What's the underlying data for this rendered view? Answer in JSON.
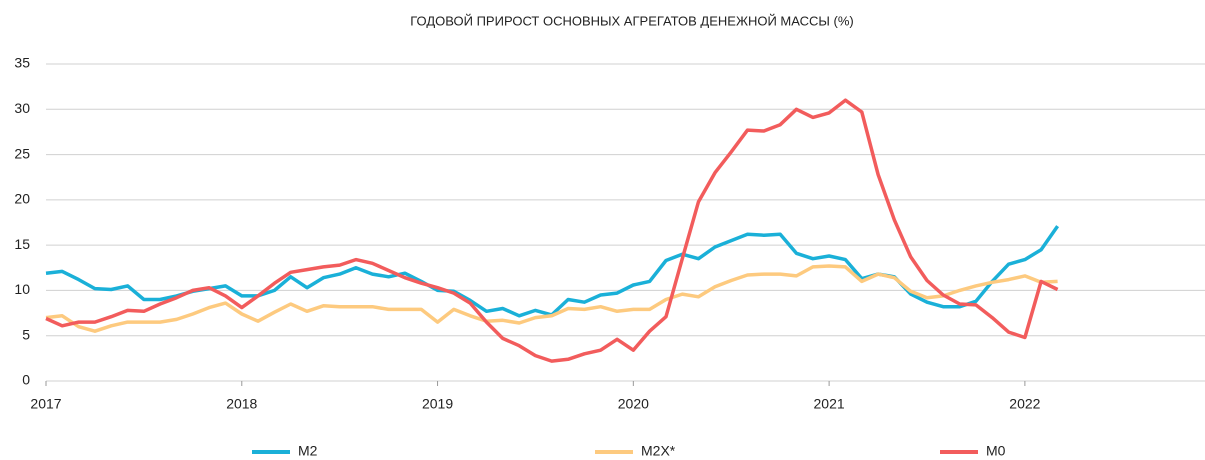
{
  "chart_data": {
    "type": "line",
    "title": "ГОДОВОЙ ПРИРОСТ ОСНОВНЫХ АГРЕГАТОВ ДЕНЕЖНОЙ МАССЫ (%)",
    "x": [
      2017,
      2017.083,
      2017.167,
      2017.25,
      2017.333,
      2017.417,
      2017.5,
      2017.583,
      2017.667,
      2017.75,
      2017.833,
      2017.917,
      2018,
      2018.083,
      2018.167,
      2018.25,
      2018.333,
      2018.417,
      2018.5,
      2018.583,
      2018.667,
      2018.75,
      2018.833,
      2018.917,
      2019,
      2019.083,
      2019.167,
      2019.25,
      2019.333,
      2019.417,
      2019.5,
      2019.583,
      2019.667,
      2019.75,
      2019.833,
      2019.917,
      2020,
      2020.083,
      2020.167,
      2020.25,
      2020.333,
      2020.417,
      2020.5,
      2020.583,
      2020.667,
      2020.75,
      2020.833,
      2020.917,
      2021,
      2021.083,
      2021.167,
      2021.25,
      2021.333,
      2021.417,
      2021.5,
      2021.583,
      2021.667,
      2021.75,
      2021.833,
      2021.917,
      2022,
      2022.083,
      2022.167
    ],
    "series": [
      {
        "name": "M2",
        "color": "#1ab0d8",
        "values": [
          11.9,
          12.1,
          11.2,
          10.2,
          10.1,
          10.5,
          9.0,
          9.0,
          9.4,
          9.9,
          10.2,
          10.5,
          9.4,
          9.4,
          10.0,
          11.5,
          10.3,
          11.4,
          11.8,
          12.5,
          11.8,
          11.5,
          11.9,
          11.0,
          10.0,
          9.9,
          8.9,
          7.7,
          8.0,
          7.2,
          7.8,
          7.3,
          9.0,
          8.7,
          9.5,
          9.7,
          10.6,
          11.0,
          13.3,
          14.0,
          13.5,
          14.8,
          15.5,
          16.2,
          16.1,
          16.2,
          14.1,
          13.5,
          13.8,
          13.4,
          11.3,
          11.8,
          11.5,
          9.6,
          8.7,
          8.2,
          8.2,
          8.8,
          11.0,
          12.9,
          13.4,
          14.5,
          17.1
        ]
      },
      {
        "name": "M2X*",
        "color": "#fdca7f",
        "values": [
          7.0,
          7.2,
          6.0,
          5.5,
          6.1,
          6.5,
          6.5,
          6.5,
          6.8,
          7.4,
          8.1,
          8.6,
          7.4,
          6.6,
          7.6,
          8.5,
          7.7,
          8.3,
          8.2,
          8.2,
          8.2,
          7.9,
          7.9,
          7.9,
          6.5,
          7.9,
          7.2,
          6.6,
          6.7,
          6.4,
          7.0,
          7.2,
          8.0,
          7.9,
          8.2,
          7.7,
          7.9,
          7.9,
          9.0,
          9.6,
          9.3,
          10.4,
          11.1,
          11.7,
          11.8,
          11.8,
          11.6,
          12.6,
          12.7,
          12.6,
          11.0,
          11.8,
          11.4,
          9.9,
          9.2,
          9.4,
          10.0,
          10.5,
          10.9,
          11.2,
          11.6,
          10.9,
          11.0
        ]
      },
      {
        "name": "M0",
        "color": "#f25c5c",
        "values": [
          6.9,
          6.1,
          6.5,
          6.5,
          7.1,
          7.8,
          7.7,
          8.5,
          9.2,
          10.0,
          10.3,
          9.4,
          8.1,
          9.4,
          10.8,
          12.0,
          12.3,
          12.6,
          12.8,
          13.4,
          13.0,
          12.2,
          11.4,
          10.8,
          10.3,
          9.7,
          8.6,
          6.5,
          4.7,
          3.9,
          2.8,
          2.2,
          2.4,
          3.0,
          3.4,
          4.6,
          3.4,
          5.5,
          7.1,
          13.5,
          19.8,
          23.0,
          25.3,
          27.7,
          27.6,
          28.3,
          30.0,
          29.1,
          29.6,
          31.0,
          29.7,
          22.8,
          17.8,
          13.7,
          11.1,
          9.5,
          8.5,
          8.4,
          7.0,
          5.4,
          4.8,
          11.0,
          10.1
        ]
      }
    ],
    "xlim": [
      2017,
      2022.92
    ],
    "xticks": [
      2017,
      2018,
      2019,
      2020,
      2021,
      2022
    ],
    "ylim": [
      0,
      35
    ],
    "yticks": [
      0,
      5,
      10,
      15,
      20,
      25,
      30,
      35
    ],
    "grid": true,
    "legend": "bottom"
  }
}
